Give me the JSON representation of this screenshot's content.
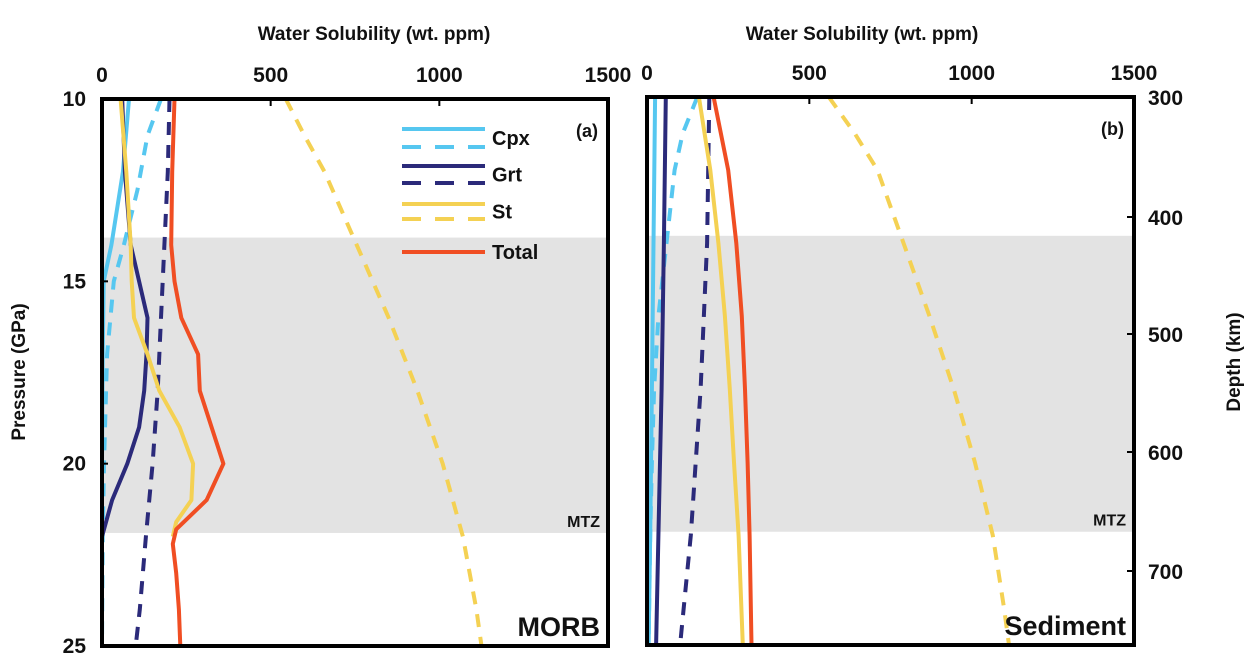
{
  "chart_data": [
    {
      "type": "line",
      "panel": "(a)",
      "composition": "MORB",
      "title": "",
      "xlabel": "Water Solubility (wt. ppm)",
      "ylabel": "Pressure (GPa)",
      "xlim": [
        0,
        1500
      ],
      "ylim": [
        10,
        25
      ],
      "x_ticks": [
        "0",
        "500",
        "1000",
        "1500"
      ],
      "y_ticks": [
        "10",
        "15",
        "20",
        "25"
      ],
      "y_inverted": true,
      "x_axis_position": "top",
      "shaded_region": {
        "label": "MTZ",
        "pressure_range": [
          13.8,
          21.9
        ]
      },
      "legend": {
        "position": "top-right",
        "entries": [
          "Cpx",
          "Grt",
          "St",
          "Total"
        ]
      },
      "series": [
        {
          "name": "Cpx",
          "style": "solid",
          "color": "#56c7f0",
          "points": [
            [
              80,
              10
            ],
            [
              62,
              12
            ],
            [
              28,
              14
            ],
            [
              5,
              15
            ],
            [
              2,
              17
            ],
            [
              0,
              20
            ],
            [
              0,
              25
            ]
          ]
        },
        {
          "name": "Cpx",
          "style": "dashed",
          "color": "#56c7f0",
          "points": [
            [
              175,
              10
            ],
            [
              135,
              11
            ],
            [
              105,
              12.5
            ],
            [
              65,
              14
            ],
            [
              35,
              15
            ],
            [
              15,
              17
            ],
            [
              6,
              20
            ],
            [
              2,
              22
            ],
            [
              0,
              25
            ]
          ]
        },
        {
          "name": "Grt",
          "style": "solid",
          "color": "#2b2a7a",
          "points": [
            [
              60,
              10
            ],
            [
              68,
              12
            ],
            [
              85,
              14
            ],
            [
              110,
              15
            ],
            [
              135,
              16
            ],
            [
              132,
              17
            ],
            [
              125,
              18
            ],
            [
              110,
              19
            ],
            [
              75,
              20
            ],
            [
              30,
              21
            ],
            [
              0,
              22
            ],
            [
              0,
              25
            ]
          ]
        },
        {
          "name": "Grt",
          "style": "dashed",
          "color": "#2b2a7a",
          "points": [
            [
              200,
              10
            ],
            [
              195,
              12
            ],
            [
              185,
              14
            ],
            [
              175,
              16
            ],
            [
              165,
              18
            ],
            [
              150,
              20
            ],
            [
              130,
              22
            ],
            [
              112,
              24
            ],
            [
              100,
              25
            ]
          ]
        },
        {
          "name": "St",
          "style": "solid",
          "color": "#f4d153",
          "points": [
            [
              55,
              10
            ],
            [
              72,
              12
            ],
            [
              85,
              14
            ],
            [
              88,
              15
            ],
            [
              95,
              16
            ],
            [
              135,
              17
            ],
            [
              170,
              18
            ],
            [
              230,
              19
            ],
            [
              270,
              20
            ],
            [
              265,
              21
            ],
            [
              220,
              21.6
            ],
            [
              210,
              22
            ]
          ]
        },
        {
          "name": "St",
          "style": "dashed",
          "color": "#f4d153",
          "points": [
            [
              545,
              10
            ],
            [
              600,
              11
            ],
            [
              660,
              12
            ],
            [
              755,
              14
            ],
            [
              850,
              16
            ],
            [
              935,
              18
            ],
            [
              1010,
              20
            ],
            [
              1070,
              22
            ],
            [
              1110,
              24
            ],
            [
              1125,
              25
            ]
          ]
        },
        {
          "name": "Total",
          "style": "solid",
          "color": "#f04e23",
          "points": [
            [
              215,
              10
            ],
            [
              208,
              12
            ],
            [
              205,
              14
            ],
            [
              215,
              15
            ],
            [
              235,
              16
            ],
            [
              285,
              17
            ],
            [
              290,
              18
            ],
            [
              325,
              19
            ],
            [
              360,
              20
            ],
            [
              310,
              21
            ],
            [
              220,
              21.8
            ],
            [
              210,
              22.2
            ],
            [
              220,
              23
            ],
            [
              228,
              24
            ],
            [
              232,
              25
            ]
          ]
        }
      ],
      "annotations": [
        "MTZ",
        "MORB",
        "(a)"
      ]
    },
    {
      "type": "line",
      "panel": "(b)",
      "composition": "Sediment",
      "title": "",
      "xlabel": "Water Solubility (wt. ppm)",
      "ylabel": "Depth (km)",
      "xlim": [
        0,
        1500
      ],
      "ylim": [
        10,
        25
      ],
      "x_ticks": [
        "0",
        "500",
        "1000",
        "1500"
      ],
      "y2_ticks": [
        "300",
        "400",
        "500",
        "600",
        "700"
      ],
      "y_inverted": true,
      "x_axis_position": "top",
      "shaded_region": {
        "label": "MTZ",
        "pressure_range": [
          13.8,
          21.9
        ]
      },
      "series": [
        {
          "name": "Cpx",
          "style": "solid",
          "color": "#56c7f0",
          "points": [
            [
              25,
              10
            ],
            [
              20,
              14
            ],
            [
              15,
              18
            ],
            [
              10,
              22
            ],
            [
              5,
              25
            ]
          ]
        },
        {
          "name": "Cpx",
          "style": "dashed",
          "color": "#56c7f0",
          "points": [
            [
              155,
              10
            ],
            [
              110,
              11
            ],
            [
              85,
              12
            ],
            [
              60,
              14
            ],
            [
              35,
              16
            ],
            [
              22,
              18
            ],
            [
              15,
              20
            ],
            [
              10,
              22
            ],
            [
              5,
              25
            ]
          ]
        },
        {
          "name": "Grt",
          "style": "solid",
          "color": "#2b2a7a",
          "points": [
            [
              58,
              10
            ],
            [
              52,
              14
            ],
            [
              45,
              18
            ],
            [
              35,
              22
            ],
            [
              28,
              25
            ]
          ]
        },
        {
          "name": "Grt",
          "style": "dashed",
          "color": "#2b2a7a",
          "points": [
            [
              192,
              10
            ],
            [
              185,
              14
            ],
            [
              165,
              18
            ],
            [
              135,
              22
            ],
            [
              102,
              25
            ]
          ]
        },
        {
          "name": "St",
          "style": "solid",
          "color": "#f4d153",
          "points": [
            [
              160,
              10
            ],
            [
              195,
              12
            ],
            [
              220,
              14
            ],
            [
              240,
              16
            ],
            [
              255,
              18
            ],
            [
              268,
              20
            ],
            [
              282,
              22
            ],
            [
              295,
              25
            ]
          ]
        },
        {
          "name": "St",
          "style": "dashed",
          "color": "#f4d153",
          "points": [
            [
              560,
              10
            ],
            [
              640,
              11
            ],
            [
              710,
              12
            ],
            [
              790,
              14
            ],
            [
              870,
              16
            ],
            [
              945,
              18
            ],
            [
              1010,
              20
            ],
            [
              1065,
              22
            ],
            [
              1100,
              24
            ],
            [
              1115,
              25
            ]
          ]
        },
        {
          "name": "Total",
          "style": "solid",
          "color": "#f04e23",
          "points": [
            [
              205,
              10
            ],
            [
              250,
              12
            ],
            [
              275,
              14
            ],
            [
              292,
              16
            ],
            [
              302,
              18
            ],
            [
              310,
              20
            ],
            [
              316,
              22
            ],
            [
              322,
              25
            ]
          ]
        }
      ],
      "annotations": [
        "MTZ",
        "Sediment",
        "(b)"
      ]
    }
  ],
  "labels": {
    "x_title": "Water Solubility (wt. ppm)",
    "y_left_title": "Pressure (GPa)",
    "y_right_title": "Depth (km)",
    "mtz": "MTZ",
    "panel_a_tag": "(a)",
    "panel_b_tag": "(b)",
    "panel_a_name": "MORB",
    "panel_b_name": "Sediment"
  }
}
